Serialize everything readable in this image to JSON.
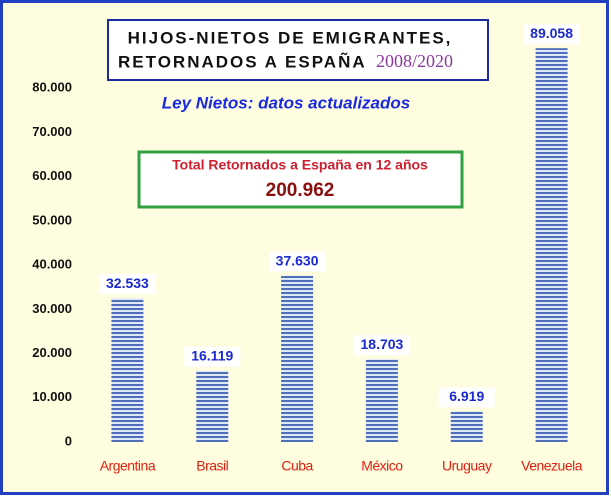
{
  "chart_data": {
    "type": "bar",
    "title_line1": "HIJOS-NIETOS DE EMIGRANTES,",
    "title_line2": "RETORNADOS A ESPAÑA",
    "title_years": "2008/2020",
    "subtitle": "Ley Nietos: datos actualizados",
    "total_label": "Total Retornados a España en 12 años",
    "total_value": "200.962",
    "categories": [
      "Argentina",
      "Brasil",
      "Cuba",
      "México",
      "Uruguay",
      "Venezuela"
    ],
    "values": [
      32533,
      16119,
      37630,
      18703,
      6919,
      89058
    ],
    "value_labels": [
      "32.533",
      "16.119",
      "37.630",
      "18.703",
      "6.919",
      "89.058"
    ],
    "ylim": [
      0,
      90000
    ],
    "yticks": [
      0,
      {
        "value": 10000,
        "label": "10.000"
      },
      {
        "value": 20000,
        "label": "20.000"
      },
      {
        "value": 30000,
        "label": "30.000"
      },
      {
        "value": 40000,
        "label": "40.000"
      },
      {
        "value": 50000,
        "label": "50.000"
      },
      {
        "value": 60000,
        "label": "60.000"
      },
      {
        "value": 70000,
        "label": "70.000"
      },
      {
        "value": 80000,
        "label": "80.000"
      }
    ],
    "grid": false
  }
}
